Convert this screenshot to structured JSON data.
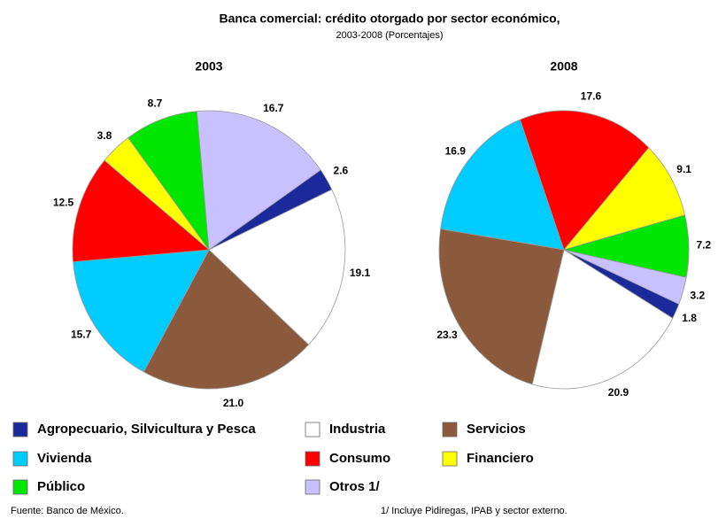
{
  "title": "Banca comercial: crédito otorgado por sector económico,",
  "subtitle": "2003-2008  (Porcentajes)",
  "source": "Fuente: Banco de México.",
  "footnote": "1/ Incluye Pidiregas, IPAB y sector externo.",
  "chart_data": [
    {
      "type": "pie",
      "title": "2003",
      "categories": [
        "Agropecuario, Silvicultura y Pesca",
        "Industria",
        "Servicios",
        "Vivienda",
        "Consumo",
        "Financiero",
        "Público",
        "Otros 1/"
      ],
      "values": [
        2.6,
        19.1,
        21.0,
        15.7,
        12.5,
        3.8,
        8.7,
        16.7
      ],
      "value_labels": [
        "2.6",
        "19.1",
        "21.0",
        "15.7",
        "12.5",
        "3.8",
        "8.7",
        "16.7"
      ],
      "colors": [
        "#1a2a9a",
        "#ffffff",
        "#8b5a3c",
        "#00ccff",
        "#ff0000",
        "#ffff00",
        "#00e600",
        "#c8c0ff"
      ]
    },
    {
      "type": "pie",
      "title": "2008",
      "categories": [
        "Agropecuario, Silvicultura y Pesca",
        "Industria",
        "Servicios",
        "Vivienda",
        "Consumo",
        "Financiero",
        "Público",
        "Otros 1/"
      ],
      "values": [
        1.8,
        20.9,
        23.3,
        16.9,
        17.6,
        9.1,
        7.2,
        3.2
      ],
      "value_labels": [
        "1.8",
        "20.9",
        "23.3",
        "16.9",
        "17.6",
        "9.1",
        "7.2",
        "3.2"
      ],
      "colors": [
        "#1a2a9a",
        "#ffffff",
        "#8b5a3c",
        "#00ccff",
        "#ff0000",
        "#ffff00",
        "#00e600",
        "#c8c0ff"
      ]
    }
  ]
}
